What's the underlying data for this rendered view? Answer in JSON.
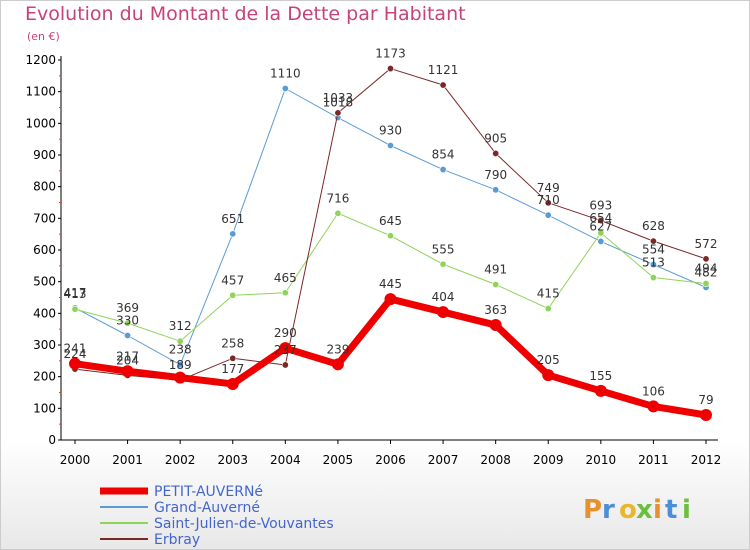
{
  "chart_data": {
    "type": "line",
    "title": "Evolution du Montant de la Dette par Habitant",
    "unit_label": "(en €)",
    "xlabel": "",
    "ylabel": "",
    "x": [
      "2000",
      "2001",
      "2002",
      "2003",
      "2004",
      "2005",
      "2006",
      "2007",
      "2008",
      "2009",
      "2010",
      "2011",
      "2012"
    ],
    "ylim": [
      0,
      1200
    ],
    "yticks": [
      0,
      100,
      200,
      300,
      400,
      500,
      600,
      700,
      800,
      900,
      1000,
      1100,
      1200
    ],
    "grid": false,
    "legend_position": "bottom-left",
    "series": [
      {
        "name": "PETIT-AUVERNé",
        "color": "#ee0000",
        "width": 7,
        "dot": 6,
        "values": [
          241,
          217,
          197,
          177,
          290,
          239,
          445,
          404,
          363,
          205,
          155,
          106,
          79
        ],
        "labels": [
          "241",
          "217",
          "",
          "177",
          "290",
          "239",
          "445",
          "404",
          "363",
          "205",
          "155",
          "106",
          "79"
        ]
      },
      {
        "name": "Grand-Auverné",
        "color": "#5b9bd5",
        "width": 1,
        "dot": 3.2,
        "values": [
          417,
          330,
          238,
          651,
          1110,
          1018,
          930,
          854,
          790,
          710,
          627,
          554,
          482
        ],
        "labels": [
          "417",
          "330",
          "238",
          "651",
          "1110",
          "1018",
          "930",
          "854",
          "790",
          "710",
          "627",
          "554",
          "482"
        ]
      },
      {
        "name": "Saint-Julien-de-Vouvantes",
        "color": "#8fd45a",
        "width": 1,
        "dot": 3.2,
        "values": [
          413,
          369,
          312,
          457,
          465,
          716,
          645,
          555,
          491,
          415,
          654,
          513,
          494
        ],
        "labels": [
          "413",
          "369",
          "312",
          "457",
          "465",
          "716",
          "645",
          "555",
          "491",
          "415",
          "654",
          "513",
          "494"
        ]
      },
      {
        "name": "Erbray",
        "color": "#7a2727",
        "width": 1,
        "dot": 3.2,
        "values": [
          224,
          204,
          189,
          258,
          237,
          1033,
          1173,
          1121,
          905,
          749,
          693,
          628,
          572
        ],
        "labels": [
          "224",
          "204",
          "189",
          "258",
          "237",
          "1033",
          "1173",
          "1121",
          "905",
          "749",
          "693",
          "628",
          "572"
        ]
      }
    ]
  },
  "brand": {
    "logo_text": "Proxiti"
  }
}
